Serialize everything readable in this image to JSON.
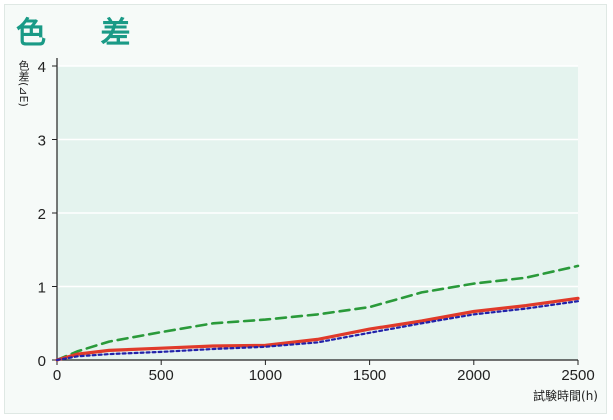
{
  "title": "色 差",
  "chart_data": {
    "type": "line",
    "title": "色 差",
    "xlabel": "試験時間(h)",
    "ylabel": "色差(⊿E)",
    "xlim": [
      0,
      2500
    ],
    "ylim": [
      0,
      4
    ],
    "xticks": [
      0,
      500,
      1000,
      1500,
      2000,
      2500
    ],
    "yticks": [
      0,
      1,
      2,
      3,
      4
    ],
    "grid": "horizontal",
    "series": [
      {
        "style": "dashed",
        "color": "#2a9a3a",
        "x": [
          0,
          100,
          250,
          500,
          750,
          1000,
          1250,
          1500,
          1750,
          2000,
          2250,
          2500
        ],
        "y": [
          0,
          0.12,
          0.25,
          0.38,
          0.5,
          0.55,
          0.62,
          0.72,
          0.92,
          1.04,
          1.12,
          1.28
        ]
      },
      {
        "style": "solid",
        "color": "#e03a2a",
        "x": [
          0,
          100,
          250,
          500,
          750,
          1000,
          1250,
          1500,
          1750,
          2000,
          2250,
          2500
        ],
        "y": [
          0,
          0.08,
          0.13,
          0.16,
          0.19,
          0.2,
          0.28,
          0.42,
          0.53,
          0.66,
          0.74,
          0.84
        ]
      },
      {
        "style": "dotted",
        "color": "#2222aa",
        "x": [
          0,
          100,
          250,
          500,
          750,
          1000,
          1250,
          1500,
          1750,
          2000,
          2250,
          2500
        ],
        "y": [
          0,
          0.05,
          0.08,
          0.11,
          0.15,
          0.18,
          0.24,
          0.37,
          0.5,
          0.62,
          0.7,
          0.8
        ]
      }
    ]
  }
}
